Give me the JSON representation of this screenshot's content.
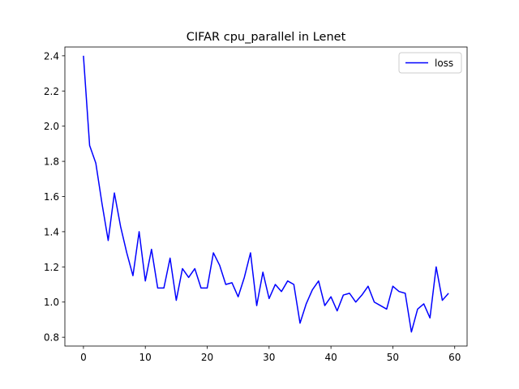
{
  "chart_data": {
    "type": "line",
    "title": "CIFAR cpu_parallel in Lenet",
    "xlabel": "",
    "ylabel": "",
    "xlim": [
      -3,
      62
    ],
    "ylim": [
      0.75,
      2.45
    ],
    "xticks": [
      0,
      10,
      20,
      30,
      40,
      50,
      60
    ],
    "yticks": [
      0.8,
      1.0,
      1.2,
      1.4,
      1.6,
      1.8,
      2.0,
      2.2,
      2.4
    ],
    "grid": false,
    "legend_position": "top-right",
    "series": [
      {
        "name": "loss",
        "color": "#0000ff",
        "x": [
          0,
          1,
          2,
          3,
          4,
          5,
          6,
          7,
          8,
          9,
          10,
          11,
          12,
          13,
          14,
          15,
          16,
          17,
          18,
          19,
          20,
          21,
          22,
          23,
          24,
          25,
          26,
          27,
          28,
          29,
          30,
          31,
          32,
          33,
          34,
          35,
          36,
          37,
          38,
          39,
          40,
          41,
          42,
          43,
          44,
          45,
          46,
          47,
          48,
          49,
          50,
          51,
          52,
          53,
          54,
          55,
          56,
          57,
          58,
          59
        ],
        "values": [
          2.4,
          1.89,
          1.79,
          1.56,
          1.35,
          1.62,
          1.43,
          1.28,
          1.15,
          1.4,
          1.12,
          1.3,
          1.08,
          1.08,
          1.25,
          1.01,
          1.19,
          1.14,
          1.19,
          1.08,
          1.08,
          1.28,
          1.21,
          1.1,
          1.11,
          1.03,
          1.14,
          1.28,
          0.98,
          1.17,
          1.02,
          1.1,
          1.06,
          1.12,
          1.1,
          0.88,
          0.99,
          1.07,
          1.12,
          0.98,
          1.03,
          0.95,
          1.04,
          1.05,
          1.0,
          1.04,
          1.09,
          1.0,
          0.98,
          0.96,
          1.09,
          1.06,
          1.05,
          0.83,
          0.96,
          0.99,
          0.91,
          1.2,
          1.01,
          1.05
        ]
      }
    ]
  }
}
